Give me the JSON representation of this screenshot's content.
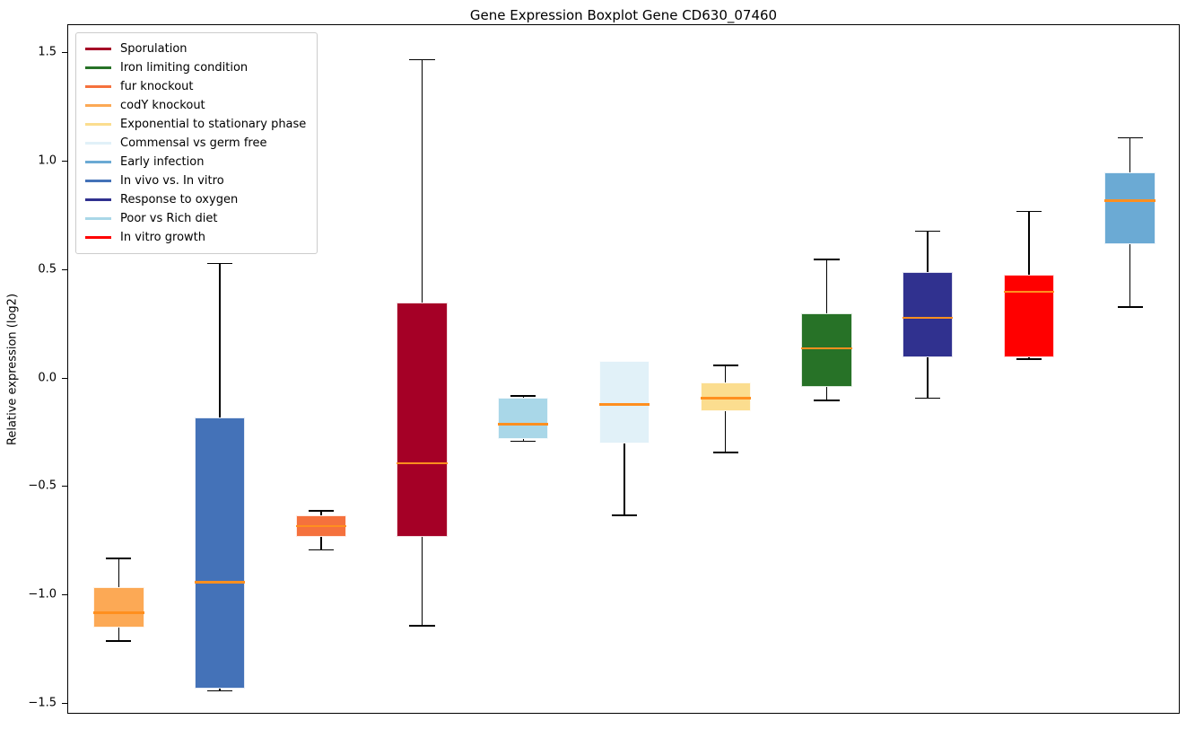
{
  "chart_data": {
    "type": "boxplot",
    "title": "Gene Expression Boxplot Gene CD630_07460",
    "xlabel": "",
    "ylabel": "Relative expression (log2)",
    "ylim": [
      -1.55,
      1.63
    ],
    "yticks": [
      1.5,
      1.0,
      0.5,
      0.0,
      -0.5,
      -1.0,
      -1.5
    ],
    "grid": false,
    "legend_position": "upper left",
    "style": {
      "median_color": "#FF8F1F",
      "whisker_color": "#000000",
      "box_edge_color": "rgba(255,255,255,0.85)",
      "frame_color": "#000000",
      "background_color": "#ffffff"
    },
    "series": [
      {
        "name": "codY knockout",
        "color": "#FCA955",
        "whisker_low": -1.21,
        "q1": -1.15,
        "median": -1.08,
        "q3": -0.96,
        "whisker_high": -0.83
      },
      {
        "name": "In vivo vs. In vitro",
        "color": "#4472B8",
        "whisker_low": -1.44,
        "q1": -1.43,
        "median": -0.94,
        "q3": -0.18,
        "whisker_high": 0.53
      },
      {
        "name": "fur knockout",
        "color": "#F5713D",
        "whisker_low": -0.79,
        "q1": -0.73,
        "median": -0.68,
        "q3": -0.63,
        "whisker_high": -0.61
      },
      {
        "name": "Sporulation",
        "color": "#A50026",
        "whisker_low": -1.14,
        "q1": -0.73,
        "median": -0.39,
        "q3": 0.35,
        "whisker_high": 1.47
      },
      {
        "name": "Poor vs Rich diet",
        "color": "#A9D7E8",
        "whisker_low": -0.29,
        "q1": -0.28,
        "median": -0.21,
        "q3": -0.09,
        "whisker_high": -0.08
      },
      {
        "name": "Commensal vs germ free",
        "color": "#E1F1F8",
        "whisker_low": -0.63,
        "q1": -0.3,
        "median": -0.12,
        "q3": 0.08,
        "whisker_high": 0.08
      },
      {
        "name": "Exponential to stationary phase",
        "color": "#FBDD8F",
        "whisker_low": -0.34,
        "q1": -0.15,
        "median": -0.09,
        "q3": -0.02,
        "whisker_high": 0.06
      },
      {
        "name": "Iron limiting condition",
        "color": "#277227",
        "whisker_low": -0.1,
        "q1": -0.04,
        "median": 0.14,
        "q3": 0.3,
        "whisker_high": 0.55
      },
      {
        "name": "Response to oxygen",
        "color": "#30318F",
        "whisker_low": -0.09,
        "q1": 0.1,
        "median": 0.28,
        "q3": 0.49,
        "whisker_high": 0.68
      },
      {
        "name": "In vitro growth",
        "color": "#FF0000",
        "whisker_low": 0.09,
        "q1": 0.1,
        "median": 0.4,
        "q3": 0.48,
        "whisker_high": 0.77
      },
      {
        "name": "Early infection",
        "color": "#6BAAD4",
        "whisker_low": 0.33,
        "q1": 0.62,
        "median": 0.82,
        "q3": 0.95,
        "whisker_high": 1.11
      }
    ],
    "legend": [
      {
        "label": "Sporulation",
        "color": "#A50026"
      },
      {
        "label": "Iron limiting condition",
        "color": "#277227"
      },
      {
        "label": "fur knockout",
        "color": "#F5713D"
      },
      {
        "label": "codY knockout",
        "color": "#FCA955"
      },
      {
        "label": "Exponential to stationary phase",
        "color": "#FBDD8F"
      },
      {
        "label": "Commensal vs germ free",
        "color": "#E1F1F8"
      },
      {
        "label": "Early infection",
        "color": "#6BAAD4"
      },
      {
        "label": "In vivo vs. In vitro",
        "color": "#4472B8"
      },
      {
        "label": "Response to oxygen",
        "color": "#30318F"
      },
      {
        "label": "Poor vs Rich diet",
        "color": "#A9D7E8"
      },
      {
        "label": "In vitro growth",
        "color": "#FF0000"
      }
    ]
  }
}
